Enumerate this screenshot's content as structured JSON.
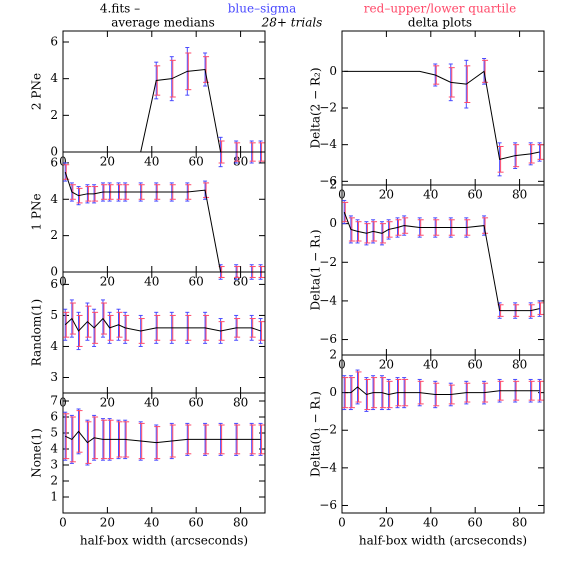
{
  "header": {
    "file": "4.fits  –",
    "sigma_legend": "blue–sigma",
    "quartile_legend": "red–upper/lower quartile",
    "left_title": "average medians",
    "trials": "28+ trials",
    "right_title": "delta plots"
  },
  "chart_data": [
    {
      "type": "line",
      "ylabel": "2 PNe",
      "color": "#000000",
      "sigma_color": "#4a4aff",
      "quartile_color": "#ff4a6a",
      "x": [
        1,
        4,
        7,
        11,
        14,
        18,
        21,
        25,
        28,
        35,
        42,
        49,
        56,
        64,
        71,
        78,
        85,
        89
      ],
      "values": [
        0,
        0,
        0,
        0,
        0,
        0,
        0,
        0,
        0,
        0,
        3.9,
        4.0,
        4.4,
        4.5,
        0,
        0,
        0,
        0
      ],
      "sigma": [
        null,
        null,
        null,
        null,
        null,
        null,
        null,
        null,
        null,
        null,
        1.0,
        1.2,
        1.3,
        0.9,
        0.8,
        0.6,
        0.6,
        0.6
      ],
      "quartile": [
        null,
        null,
        null,
        null,
        null,
        null,
        null,
        null,
        null,
        null,
        0.8,
        1.0,
        1.0,
        0.7,
        0.6,
        0.5,
        0.5,
        0.5
      ],
      "xlim": [
        0,
        91
      ],
      "xticks": [
        0,
        20,
        40,
        60,
        80
      ],
      "ylim": [
        0,
        6.6
      ],
      "yticks": [
        0,
        2,
        4,
        6
      ]
    },
    {
      "type": "line",
      "ylabel": "1 PNe",
      "color": "#000000",
      "sigma_color": "#4a4aff",
      "quartile_color": "#ff4a6a",
      "x": [
        1,
        4,
        7,
        11,
        14,
        18,
        21,
        25,
        28,
        35,
        42,
        49,
        56,
        64,
        71,
        78,
        85,
        89
      ],
      "values": [
        5.5,
        4.4,
        4.2,
        4.3,
        4.3,
        4.4,
        4.4,
        4.4,
        4.4,
        4.4,
        4.4,
        4.4,
        4.4,
        4.5,
        0,
        0,
        0,
        0
      ],
      "sigma": [
        0.5,
        0.5,
        0.5,
        0.5,
        0.5,
        0.5,
        0.5,
        0.5,
        0.5,
        0.5,
        0.5,
        0.5,
        0.5,
        0.5,
        0.4,
        0.4,
        0.4,
        0.4
      ],
      "quartile": [
        0.4,
        0.4,
        0.4,
        0.4,
        0.4,
        0.4,
        0.4,
        0.4,
        0.4,
        0.4,
        0.4,
        0.4,
        0.4,
        0.4,
        0.3,
        0.3,
        0.3,
        0.3
      ],
      "xlim": [
        0,
        91
      ],
      "xticks": [
        0,
        20,
        40,
        60,
        80
      ],
      "ylim": [
        0,
        6.6
      ],
      "yticks": [
        0,
        2,
        4,
        6
      ]
    },
    {
      "type": "line",
      "ylabel": "Random(1)",
      "color": "#000000",
      "sigma_color": "#4a4aff",
      "quartile_color": "#ff4a6a",
      "x": [
        1,
        4,
        7,
        11,
        14,
        18,
        21,
        25,
        28,
        35,
        42,
        49,
        56,
        64,
        71,
        78,
        85,
        89
      ],
      "values": [
        4.7,
        4.9,
        4.5,
        4.8,
        4.6,
        4.9,
        4.6,
        4.7,
        4.6,
        4.5,
        4.6,
        4.6,
        4.6,
        4.6,
        4.5,
        4.6,
        4.6,
        4.5
      ],
      "sigma": [
        0.5,
        0.6,
        0.6,
        0.6,
        0.6,
        0.6,
        0.5,
        0.5,
        0.5,
        0.5,
        0.5,
        0.5,
        0.5,
        0.5,
        0.4,
        0.4,
        0.4,
        0.4
      ],
      "quartile": [
        0.4,
        0.5,
        0.5,
        0.5,
        0.5,
        0.5,
        0.4,
        0.4,
        0.4,
        0.4,
        0.4,
        0.4,
        0.4,
        0.4,
        0.3,
        0.3,
        0.3,
        0.3
      ],
      "xlim": [
        0,
        91
      ],
      "xticks": [
        0,
        20,
        40,
        60,
        80
      ],
      "ylim": [
        2.5,
        6.4
      ],
      "yticks": [
        3,
        4,
        5,
        6
      ]
    },
    {
      "type": "line",
      "ylabel": "None(1)",
      "xlabel": "half-box width (arcseconds)",
      "color": "#000000",
      "sigma_color": "#4a4aff",
      "quartile_color": "#ff4a6a",
      "x": [
        1,
        4,
        7,
        11,
        14,
        18,
        21,
        25,
        28,
        35,
        42,
        49,
        56,
        64,
        71,
        78,
        85,
        89
      ],
      "values": [
        4.8,
        4.6,
        5.1,
        4.4,
        4.7,
        4.6,
        4.6,
        4.6,
        4.6,
        4.5,
        4.4,
        4.5,
        4.6,
        4.6,
        4.6,
        4.6,
        4.6,
        4.6
      ],
      "sigma": [
        1.5,
        1.5,
        1.4,
        1.4,
        1.4,
        1.3,
        1.3,
        1.2,
        1.2,
        1.2,
        1.1,
        1.1,
        1.0,
        1.0,
        1.0,
        1.0,
        1.0,
        1.0
      ],
      "quartile": [
        1.4,
        1.4,
        1.3,
        1.3,
        1.3,
        1.2,
        1.2,
        1.1,
        1.1,
        1.1,
        1.0,
        1.0,
        0.9,
        0.9,
        0.9,
        0.9,
        0.9,
        0.9
      ],
      "xlim": [
        0,
        91
      ],
      "xticks": [
        0,
        20,
        40,
        60,
        80
      ],
      "ylim": [
        0,
        7.5
      ],
      "yticks": [
        1,
        2,
        3,
        4,
        5,
        6,
        7
      ]
    },
    {
      "type": "line",
      "ylabel": "Delta(2 − R₂)",
      "color": "#000000",
      "sigma_color": "#4a4aff",
      "quartile_color": "#ff4a6a",
      "x": [
        1,
        4,
        7,
        11,
        14,
        18,
        21,
        25,
        28,
        35,
        42,
        49,
        56,
        64,
        71,
        78,
        85,
        89
      ],
      "values": [
        0,
        0,
        0,
        0,
        0,
        0,
        0,
        0,
        0,
        0,
        -0.2,
        -0.6,
        -0.7,
        0,
        -4.8,
        -4.6,
        -4.5,
        -4.4
      ],
      "sigma": [
        null,
        null,
        null,
        null,
        null,
        null,
        null,
        null,
        null,
        null,
        0.6,
        1.0,
        1.3,
        0.7,
        0.9,
        0.7,
        0.6,
        0.5
      ],
      "quartile": [
        null,
        null,
        null,
        null,
        null,
        null,
        null,
        null,
        null,
        null,
        0.5,
        0.8,
        1.0,
        0.6,
        0.7,
        0.6,
        0.5,
        0.4
      ],
      "xlim": [
        0,
        91
      ],
      "xticks": [
        0,
        20,
        40,
        60,
        80
      ],
      "ylim": [
        -6.2,
        2.2
      ],
      "yticks": [
        0,
        {
          "value": -2,
          "label": "−2"
        },
        {
          "value": -4,
          "label": "−4"
        },
        {
          "value": -6,
          "label": "−6"
        }
      ]
    },
    {
      "type": "line",
      "ylabel": "Delta(1 − R₁)",
      "color": "#000000",
      "sigma_color": "#4a4aff",
      "quartile_color": "#ff4a6a",
      "x": [
        1,
        4,
        7,
        11,
        14,
        18,
        21,
        25,
        28,
        35,
        42,
        49,
        56,
        64,
        71,
        78,
        85,
        89
      ],
      "values": [
        0.6,
        -0.3,
        -0.4,
        -0.5,
        -0.4,
        -0.5,
        -0.3,
        -0.2,
        -0.1,
        -0.2,
        -0.2,
        -0.2,
        -0.2,
        -0.1,
        -4.5,
        -4.5,
        -4.5,
        -4.4
      ],
      "sigma": [
        0.6,
        0.7,
        0.6,
        0.6,
        0.6,
        0.6,
        0.5,
        0.5,
        0.5,
        0.5,
        0.5,
        0.5,
        0.5,
        0.5,
        0.4,
        0.4,
        0.4,
        0.4
      ],
      "quartile": [
        0.5,
        0.6,
        0.5,
        0.5,
        0.5,
        0.5,
        0.4,
        0.4,
        0.4,
        0.4,
        0.4,
        0.4,
        0.4,
        0.4,
        0.3,
        0.3,
        0.3,
        0.3
      ],
      "xlim": [
        0,
        91
      ],
      "xticks": [
        0,
        20,
        40,
        60,
        80
      ],
      "ylim": [
        -6.8,
        2
      ],
      "yticks": [
        2,
        0,
        {
          "value": -2,
          "label": "−2"
        },
        {
          "value": -4,
          "label": "−4"
        },
        {
          "value": -6,
          "label": "−6"
        }
      ]
    },
    {
      "type": "line",
      "ylabel": "Delta(0₁ − R₁)",
      "xlabel": "half-box width (arcseconds)",
      "color": "#000000",
      "sigma_color": "#4a4aff",
      "quartile_color": "#ff4a6a",
      "x": [
        1,
        4,
        7,
        11,
        14,
        18,
        21,
        25,
        28,
        35,
        42,
        49,
        56,
        64,
        71,
        78,
        85,
        89
      ],
      "values": [
        0,
        0,
        0.3,
        -0.1,
        0,
        0,
        -0.1,
        0,
        0,
        0,
        -0.1,
        -0.1,
        0,
        0,
        0.1,
        0.1,
        0.1,
        0.1
      ],
      "sigma": [
        0.9,
        0.9,
        0.9,
        0.9,
        0.9,
        0.9,
        0.8,
        0.8,
        0.8,
        0.7,
        0.7,
        0.6,
        0.6,
        0.6,
        0.6,
        0.6,
        0.6,
        0.6
      ],
      "quartile": [
        0.8,
        0.8,
        0.8,
        0.8,
        0.8,
        0.8,
        0.7,
        0.7,
        0.7,
        0.6,
        0.6,
        0.5,
        0.5,
        0.5,
        0.5,
        0.5,
        0.5,
        0.5
      ],
      "xlim": [
        0,
        91
      ],
      "xticks": [
        0,
        20,
        40,
        60,
        80
      ],
      "ylim": [
        -6.4,
        2
      ],
      "yticks": [
        2,
        0,
        {
          "value": -2,
          "label": "−2"
        },
        {
          "value": -4,
          "label": "−4"
        },
        {
          "value": -6,
          "label": "−6"
        }
      ]
    }
  ]
}
